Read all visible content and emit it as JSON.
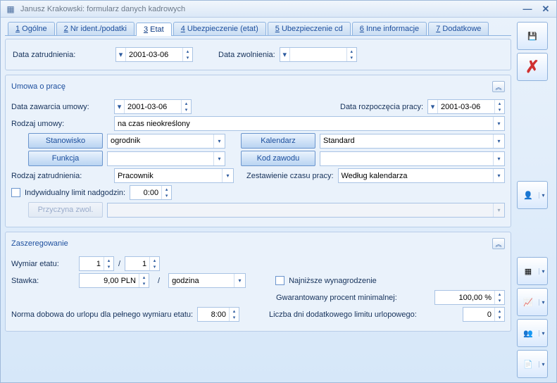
{
  "window": {
    "title": "Janusz Krakowski: formularz danych kadrowych"
  },
  "tabs": [
    {
      "num": "1",
      "label": "Ogólne",
      "active": false
    },
    {
      "num": "2",
      "label": "Nr ident./podatki",
      "active": false
    },
    {
      "num": "3",
      "label": "Etat",
      "active": true
    },
    {
      "num": "4",
      "label": "Ubezpieczenie (etat)",
      "active": false
    },
    {
      "num": "5",
      "label": "Ubezpieczenie cd",
      "active": false
    },
    {
      "num": "6",
      "label": "Inne informacje",
      "active": false
    },
    {
      "num": "7",
      "label": "Dodatkowe",
      "active": false
    }
  ],
  "employment_dates": {
    "hire_label": "Data zatrudnienia:",
    "hire_value": "2001-03-06",
    "termination_label": "Data zwolnienia:",
    "termination_value": ""
  },
  "contract_section": {
    "title": "Umowa o pracę",
    "contract_date_label": "Data zawarcia umowy:",
    "contract_date": "2001-03-06",
    "start_date_label": "Data rozpoczęcia pracy:",
    "start_date": "2001-03-06",
    "contract_type_label": "Rodzaj umowy:",
    "contract_type": "na czas nieokreślony",
    "position_btn": "Stanowisko",
    "position_value": "ogrodnik",
    "calendar_btn": "Kalendarz",
    "calendar_value": "Standard",
    "function_btn": "Funkcja",
    "function_value": "",
    "job_code_btn": "Kod zawodu",
    "job_code_value": "",
    "employment_kind_label": "Rodzaj zatrudnienia:",
    "employment_kind": "Pracownik",
    "time_summary_label": "Zestawienie czasu pracy:",
    "time_summary": "Według kalendarza",
    "overtime_limit_label": "Indywidualny limit nadgodzin:",
    "overtime_limit_value": "0:00",
    "termination_reason_btn": "Przyczyna zwol.",
    "termination_reason_value": ""
  },
  "grade_section": {
    "title": "Zaszeregowanie",
    "fte_label": "Wymiar etatu:",
    "fte_num": "1",
    "fte_den": "1",
    "rate_label": "Stawka:",
    "rate_value": "9,00 PLN",
    "rate_per_sep": "/",
    "rate_per": "godzina",
    "min_wage_label": "Najniższe wynagrodzenie",
    "guaranteed_label": "Gwarantowany procent minimalnej:",
    "guaranteed_value": "100,00 %",
    "daily_norm_label": "Norma dobowa do urlopu dla pełnego wymiaru etatu:",
    "daily_norm_value": "8:00",
    "extra_leave_label": "Liczba dni dodatkowego limitu urlopowego:",
    "extra_leave_value": "0"
  },
  "colors": {
    "bg_top": "#eaf2fb",
    "bg_bottom": "#d6e7f9",
    "border": "#9fb9da",
    "tab_active_bg": "#ffffff",
    "link": "#1d4f9e"
  }
}
